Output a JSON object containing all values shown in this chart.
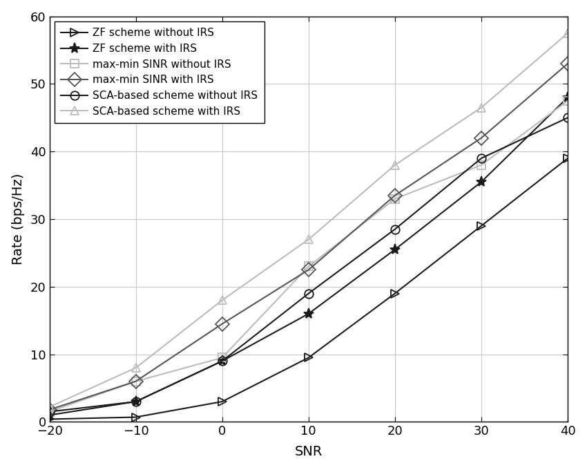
{
  "snr": [
    -20,
    -10,
    0,
    10,
    20,
    30,
    40
  ],
  "series": [
    {
      "label": "ZF scheme without IRS",
      "color": "#1a1a1a",
      "linewidth": 1.5,
      "marker": "triangle_right",
      "markersize": 9,
      "linestyle": "-",
      "markerfacecolor": "none",
      "values": [
        0.4,
        0.7,
        3.0,
        9.5,
        19.0,
        29.0,
        39.0
      ]
    },
    {
      "label": "ZF scheme with IRS",
      "color": "#1a1a1a",
      "linewidth": 1.5,
      "marker": "star",
      "markersize": 11,
      "linestyle": "-",
      "markerfacecolor": "#1a1a1a",
      "values": [
        1.0,
        3.0,
        9.0,
        16.0,
        25.5,
        35.5,
        48.0
      ]
    },
    {
      "label": "max-min SINR without IRS",
      "color": "#bbbbbb",
      "linewidth": 1.5,
      "marker": "square",
      "markersize": 8,
      "linestyle": "-",
      "markerfacecolor": "none",
      "values": [
        1.5,
        6.0,
        9.5,
        23.0,
        33.0,
        38.0,
        47.5
      ]
    },
    {
      "label": "max-min SINR with IRS",
      "color": "#555555",
      "linewidth": 1.5,
      "marker": "diamond",
      "markersize": 10,
      "linestyle": "-",
      "markerfacecolor": "none",
      "values": [
        1.8,
        6.0,
        14.5,
        22.5,
        33.5,
        42.0,
        53.0
      ]
    },
    {
      "label": "SCA-based scheme without IRS",
      "color": "#1a1a1a",
      "linewidth": 1.5,
      "marker": "circle",
      "markersize": 9,
      "linestyle": "-",
      "markerfacecolor": "none",
      "values": [
        1.5,
        3.0,
        9.0,
        19.0,
        28.5,
        39.0,
        45.0
      ]
    },
    {
      "label": "SCA-based scheme with IRS",
      "color": "#bbbbbb",
      "linewidth": 1.5,
      "marker": "triangle_up",
      "markersize": 9,
      "linestyle": "-",
      "markerfacecolor": "none",
      "values": [
        2.2,
        8.0,
        18.0,
        27.0,
        38.0,
        46.5,
        57.5
      ]
    }
  ],
  "xlabel": "SNR",
  "ylabel": "Rate (bps/Hz)",
  "xlim": [
    -20,
    40
  ],
  "ylim": [
    0,
    60
  ],
  "xticks": [
    -20,
    -10,
    0,
    10,
    20,
    30,
    40
  ],
  "yticks": [
    0,
    10,
    20,
    30,
    40,
    50,
    60
  ],
  "grid": true,
  "background_color": "#ffffff",
  "legend_loc": "upper left",
  "axis_fontsize": 14,
  "tick_fontsize": 13,
  "legend_fontsize": 11
}
